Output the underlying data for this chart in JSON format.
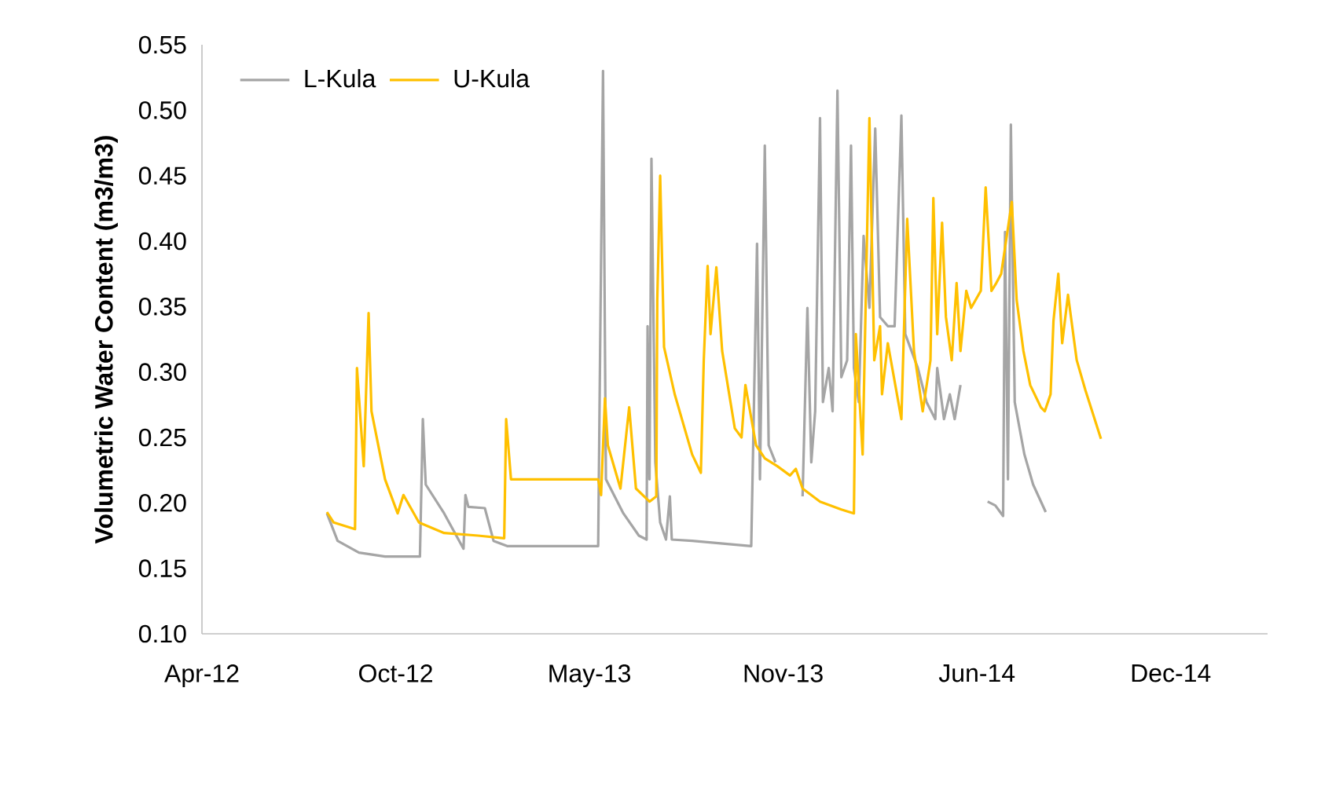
{
  "chart_data": {
    "type": "line",
    "ylabel": "Volumetric Water Content (m3/m3)",
    "xlim": [
      "2012-04-01",
      "2015-04-06"
    ],
    "xticks": [
      {
        "value": "2012-04-01",
        "label": "Apr-12"
      },
      {
        "value": "2012-10-18",
        "label": "Oct-12"
      },
      {
        "value": "2013-05-06",
        "label": "May-13"
      },
      {
        "value": "2013-11-22",
        "label": "Nov-13"
      },
      {
        "value": "2014-06-10",
        "label": "Jun-14"
      },
      {
        "value": "2014-12-27",
        "label": "Dec-14"
      }
    ],
    "ylim": [
      0.1,
      0.55
    ],
    "yticks": [
      {
        "value": 0.1,
        "label": "0.10"
      },
      {
        "value": 0.15,
        "label": "0.15"
      },
      {
        "value": 0.2,
        "label": "0.20"
      },
      {
        "value": 0.25,
        "label": "0.25"
      },
      {
        "value": 0.3,
        "label": "0.30"
      },
      {
        "value": 0.35,
        "label": "0.35"
      },
      {
        "value": 0.4,
        "label": "0.40"
      },
      {
        "value": 0.45,
        "label": "0.45"
      },
      {
        "value": 0.5,
        "label": "0.50"
      },
      {
        "value": 0.55,
        "label": "0.55"
      }
    ],
    "grid": false,
    "legend": "top left",
    "marker": "none",
    "line_style": "solid",
    "series": [
      {
        "name": "L-Kula",
        "color": "#a5a5a5",
        "x": [
          "2012-08-08",
          "2012-08-19",
          "2012-09-10",
          "2012-10-07",
          "2012-11-12",
          "2012-11-15",
          "2012-11-18",
          "2012-12-07",
          "2012-12-27",
          "2012-12-29",
          "2013-01-01",
          "2013-01-18",
          "2013-01-27",
          "2013-02-10",
          "2013-05-15",
          "2013-05-17",
          "2013-05-20",
          "2013-05-23",
          "2013-06-10",
          "2013-06-26",
          "2013-07-04",
          "2013-07-05",
          "2013-07-07",
          "2013-07-09",
          "2013-07-13",
          "2013-07-18",
          "2013-07-24",
          "2013-07-28",
          "2013-07-30",
          "2013-08-20",
          "2013-10-20",
          "2013-10-26",
          "2013-10-29",
          "2013-11-03",
          "2013-11-07",
          "2013-11-14",
          "2013-11-28",
          "2013-12-12",
          "2013-12-17",
          "2013-12-21",
          "2013-12-25",
          "2013-12-30",
          "2014-01-02",
          "2014-01-08",
          "2014-01-12",
          "2014-01-17",
          "2014-01-21",
          "2014-01-27",
          "2014-01-31",
          "2014-02-03",
          "2014-02-08",
          "2014-02-13",
          "2014-02-19",
          "2014-02-25",
          "2014-03-02",
          "2014-03-10",
          "2014-03-17",
          "2014-03-24",
          "2014-03-28",
          "2014-04-10",
          "2014-04-19",
          "2014-04-28",
          "2014-04-30",
          "2014-05-07",
          "2014-05-13",
          "2014-05-18",
          "2014-05-24",
          "2014-06-07",
          "2014-06-21",
          "2014-06-29",
          "2014-07-07",
          "2014-07-09",
          "2014-07-12",
          "2014-07-15",
          "2014-07-19",
          "2014-07-29",
          "2014-08-07",
          "2014-08-20"
        ],
        "values": [
          0.192,
          0.171,
          0.162,
          0.159,
          0.159,
          0.264,
          0.214,
          0.192,
          0.165,
          0.206,
          0.197,
          0.196,
          0.171,
          0.167,
          0.167,
          0.316,
          0.53,
          0.218,
          0.192,
          0.175,
          0.172,
          0.335,
          0.218,
          0.463,
          0.231,
          0.185,
          0.172,
          0.205,
          0.172,
          0.171,
          0.167,
          0.398,
          0.218,
          0.473,
          0.244,
          0.231,
          null,
          0.205,
          0.349,
          0.231,
          0.27,
          0.494,
          0.277,
          0.303,
          0.27,
          0.515,
          0.296,
          0.309,
          0.473,
          0.303,
          0.277,
          0.404,
          0.349,
          0.486,
          0.342,
          0.335,
          0.335,
          0.496,
          0.329,
          0.303,
          0.277,
          0.264,
          0.303,
          0.264,
          0.283,
          0.264,
          0.29,
          null,
          0.201,
          0.198,
          0.19,
          0.407,
          0.218,
          0.489,
          0.277,
          0.237,
          0.214,
          0.193
        ]
      },
      {
        "name": "U-Kula",
        "color": "#ffc000",
        "x": [
          "2012-08-08",
          "2012-08-15",
          "2012-09-06",
          "2012-09-08",
          "2012-09-15",
          "2012-09-20",
          "2012-09-23",
          "2012-10-07",
          "2012-10-20",
          "2012-10-26",
          "2012-11-11",
          "2012-12-07",
          "2013-01-11",
          "2013-02-07",
          "2013-02-09",
          "2013-02-14",
          "2013-05-15",
          "2013-05-18",
          "2013-05-22",
          "2013-05-25",
          "2013-06-07",
          "2013-06-16",
          "2013-06-23",
          "2013-07-07",
          "2013-07-14",
          "2013-07-15",
          "2013-07-18",
          "2013-07-22",
          "2013-08-02",
          "2013-08-20",
          "2013-08-29",
          "2013-09-01",
          "2013-09-05",
          "2013-09-08",
          "2013-09-14",
          "2013-09-20",
          "2013-10-03",
          "2013-10-10",
          "2013-10-14",
          "2013-10-25",
          "2013-11-03",
          "2013-11-16",
          "2013-11-29",
          "2013-12-05",
          "2013-12-12",
          "2013-12-30",
          "2014-01-21",
          "2014-02-03",
          "2014-02-05",
          "2014-02-12",
          "2014-02-19",
          "2014-02-24",
          "2014-03-02",
          "2014-03-04",
          "2014-03-10",
          "2014-03-24",
          "2014-03-30",
          "2014-04-06",
          "2014-04-15",
          "2014-04-23",
          "2014-04-26",
          "2014-04-30",
          "2014-05-05",
          "2014-05-09",
          "2014-05-15",
          "2014-05-20",
          "2014-05-24",
          "2014-05-30",
          "2014-06-04",
          "2014-06-14",
          "2014-06-19",
          "2014-06-25",
          "2014-06-30",
          "2014-07-05",
          "2014-07-16",
          "2014-07-21",
          "2014-07-28",
          "2014-08-04",
          "2014-08-15",
          "2014-08-19",
          "2014-08-25",
          "2014-08-28",
          "2014-09-02",
          "2014-09-06",
          "2014-09-12",
          "2014-09-21",
          "2014-09-30",
          "2014-10-16"
        ],
        "values": [
          0.193,
          0.185,
          0.18,
          0.303,
          0.228,
          0.345,
          0.27,
          0.218,
          0.192,
          0.206,
          0.185,
          0.177,
          0.175,
          0.173,
          0.264,
          0.218,
          0.218,
          0.206,
          0.28,
          0.244,
          0.211,
          0.273,
          0.211,
          0.201,
          0.205,
          0.355,
          0.45,
          0.319,
          0.283,
          0.237,
          0.223,
          0.309,
          0.381,
          0.329,
          0.38,
          0.316,
          0.257,
          0.25,
          0.29,
          0.244,
          0.234,
          0.228,
          0.221,
          0.226,
          0.211,
          0.201,
          0.195,
          0.192,
          0.329,
          0.237,
          0.494,
          0.309,
          0.335,
          0.283,
          0.322,
          0.264,
          0.417,
          0.316,
          0.27,
          0.309,
          0.433,
          0.329,
          0.414,
          0.342,
          0.309,
          0.368,
          0.316,
          0.362,
          0.349,
          0.362,
          0.441,
          0.362,
          0.368,
          0.375,
          0.43,
          0.355,
          0.316,
          0.29,
          0.273,
          0.27,
          0.283,
          0.339,
          0.375,
          0.322,
          0.359,
          0.309,
          0.286,
          0.249
        ]
      }
    ]
  }
}
